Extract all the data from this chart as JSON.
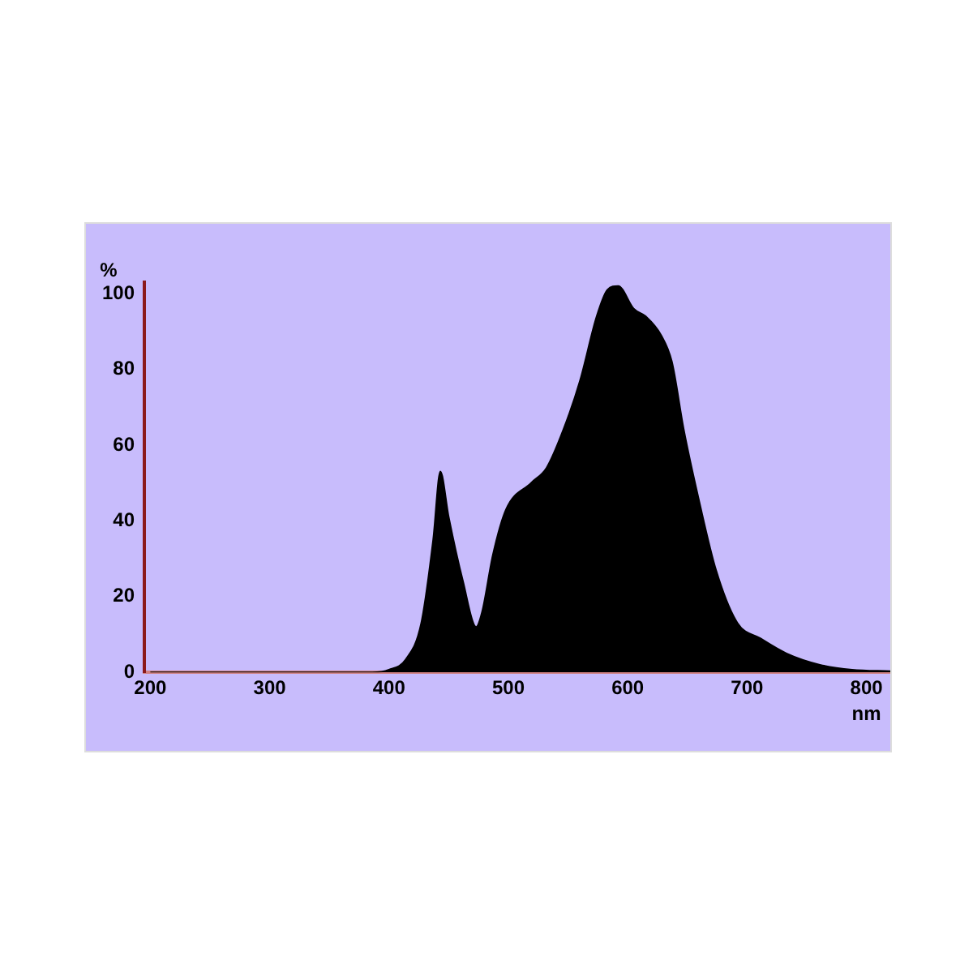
{
  "chart_data": {
    "type": "area",
    "xlabel": "nm",
    "ylabel": "%",
    "x": [
      200,
      300,
      386,
      400,
      414,
      427,
      437,
      443,
      450,
      462,
      473,
      478,
      487,
      498,
      519,
      532,
      546,
      560,
      574,
      583,
      592,
      605,
      615,
      628,
      637,
      647,
      660,
      674,
      692,
      711,
      733,
      761,
      788,
      820
    ],
    "series": [
      {
        "color": "#000000",
        "values": [
          0,
          0,
          0,
          0.7,
          3.4,
          13,
          35,
          53,
          41,
          24,
          12,
          16,
          31,
          43,
          50,
          54,
          64,
          77,
          94,
          101,
          102,
          96,
          94,
          89,
          82,
          64,
          45,
          27,
          13,
          9,
          5,
          2,
          0.7,
          0.3
        ]
      }
    ],
    "xlim": [
      195,
      820
    ],
    "xticks": [
      200,
      300,
      400,
      500,
      600,
      700,
      800
    ],
    "ylim": [
      0,
      103
    ],
    "yticks": [
      0,
      20,
      40,
      60,
      80,
      100
    ],
    "grid": false,
    "legend": false
  }
}
